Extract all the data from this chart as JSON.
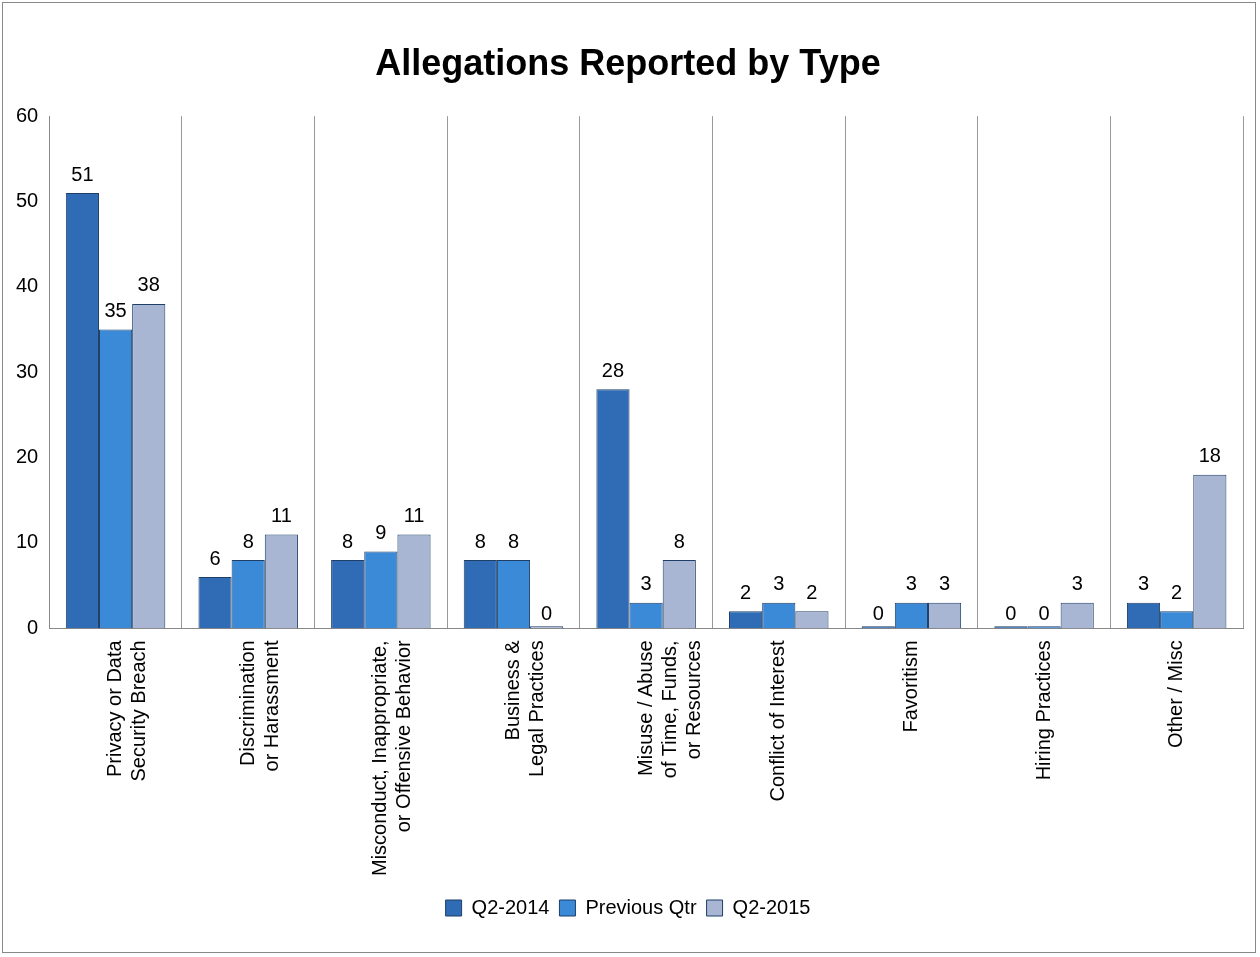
{
  "chart_data": {
    "type": "bar",
    "title": "Allegations Reported by Type",
    "categories": [
      "Privacy or Data\nSecurity Breach",
      "Discrimination\nor Harassment",
      "Misconduct, Inappropriate,\nor Offensive Behavior",
      "Business &\nLegal Practices",
      "Misuse / Abuse\nof Time, Funds,\nor Resources",
      "Conflict of Interest",
      "Favoritism",
      "Hiring Practices",
      "Other / Misc"
    ],
    "series": [
      {
        "name": "Q2-2014",
        "color": "#2f6cb5",
        "values": [
          51,
          6,
          8,
          8,
          28,
          2,
          0,
          0,
          3
        ]
      },
      {
        "name": "Previous Qtr",
        "color": "#3b8ad8",
        "values": [
          35,
          8,
          9,
          8,
          3,
          3,
          3,
          0,
          2
        ]
      },
      {
        "name": "Q2-2015",
        "color": "#a8b6d4",
        "values": [
          38,
          11,
          11,
          0,
          8,
          2,
          3,
          3,
          18
        ]
      }
    ],
    "ylim": [
      0,
      60
    ],
    "yticks": [
      0,
      10,
      20,
      30,
      40,
      50,
      60
    ],
    "grid": "x",
    "legend": "bottom",
    "data_labels": true
  }
}
